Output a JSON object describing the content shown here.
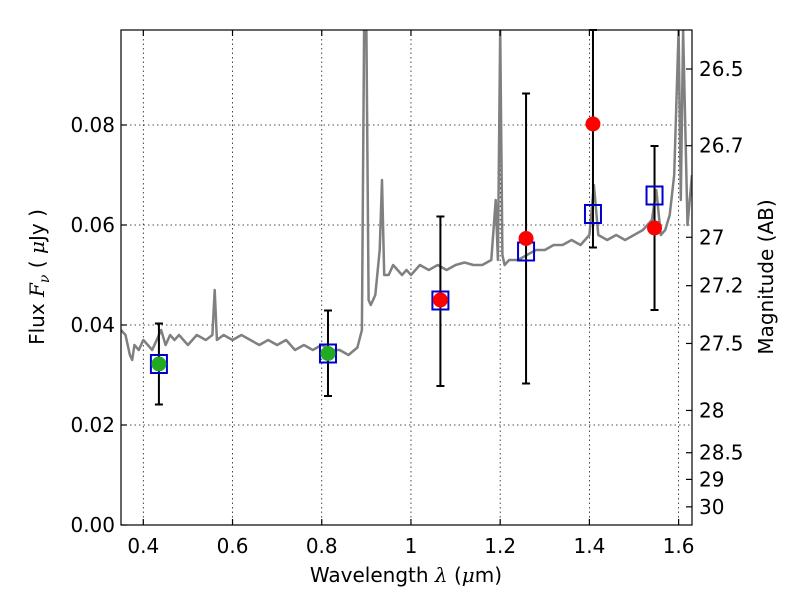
{
  "chart_data": {
    "type": "scatter",
    "xlabel": "Wavelength",
    "xlabel_symbol": "λ",
    "xlabel_unit_open": " (",
    "xlabel_unit_mu": "μ",
    "xlabel_unit_close": "m)",
    "ylabel": "Flux",
    "ylabel_symbol": "F",
    "ylabel_sub": "ν",
    "ylabel_unit_open": "( ",
    "ylabel_unit_mu": "μ",
    "ylabel_unit_close": "Jy )",
    "y2label": "Magnitude (AB)",
    "xlim": [
      0.35,
      1.63
    ],
    "ylim": [
      0.0,
      0.099
    ],
    "grid": true,
    "x_ticks": [
      {
        "value": 0.4,
        "label": "0.4"
      },
      {
        "value": 0.6,
        "label": "0.6"
      },
      {
        "value": 0.8,
        "label": "0.8"
      },
      {
        "value": 1.0,
        "label": "1"
      },
      {
        "value": 1.2,
        "label": "1.2"
      },
      {
        "value": 1.4,
        "label": "1.4"
      },
      {
        "value": 1.6,
        "label": "1.6"
      }
    ],
    "y_ticks": [
      {
        "value": 0.0,
        "label": "0.00"
      },
      {
        "value": 0.02,
        "label": "0.02"
      },
      {
        "value": 0.04,
        "label": "0.04"
      },
      {
        "value": 0.06,
        "label": "0.06"
      },
      {
        "value": 0.08,
        "label": "0.08"
      }
    ],
    "y2_ticks": [
      {
        "value": 26.5,
        "label": "26.5"
      },
      {
        "value": 26.7,
        "label": "26.7"
      },
      {
        "value": 27.0,
        "label": "27"
      },
      {
        "value": 27.2,
        "label": "27.2"
      },
      {
        "value": 27.5,
        "label": "27.5"
      },
      {
        "value": 28.0,
        "label": "28"
      },
      {
        "value": 28.5,
        "label": "28.5"
      },
      {
        "value": 29.0,
        "label": "29"
      },
      {
        "value": 30.0,
        "label": "30"
      }
    ],
    "observed": [
      {
        "x": 0.435,
        "y": 0.0322,
        "yerr_low": 0.0241,
        "yerr_high": 0.0403,
        "color": "#22aa22"
      },
      {
        "x": 0.814,
        "y": 0.0343,
        "yerr_low": 0.0258,
        "yerr_high": 0.0429,
        "color": "#22aa22"
      },
      {
        "x": 1.066,
        "y": 0.045,
        "yerr_low": 0.0278,
        "yerr_high": 0.0617,
        "color": "#ff0000"
      },
      {
        "x": 1.258,
        "y": 0.0573,
        "yerr_low": 0.0283,
        "yerr_high": 0.0863,
        "color": "#ff0000"
      },
      {
        "x": 1.408,
        "y": 0.0802,
        "yerr_low": 0.0555,
        "yerr_high": 0.099,
        "color": "#ff0000"
      },
      {
        "x": 1.546,
        "y": 0.0594,
        "yerr_low": 0.043,
        "yerr_high": 0.0758,
        "color": "#ff0000"
      }
    ],
    "model_photometry": [
      {
        "x": 0.435,
        "y": 0.0322
      },
      {
        "x": 0.814,
        "y": 0.0343
      },
      {
        "x": 1.066,
        "y": 0.0449
      },
      {
        "x": 1.258,
        "y": 0.0547
      },
      {
        "x": 1.408,
        "y": 0.0622
      },
      {
        "x": 1.546,
        "y": 0.0659
      }
    ],
    "spectrum": {
      "color": "#808080",
      "x": [
        0.35,
        0.36,
        0.37,
        0.375,
        0.38,
        0.39,
        0.4,
        0.41,
        0.42,
        0.43,
        0.44,
        0.45,
        0.46,
        0.47,
        0.48,
        0.5,
        0.52,
        0.54,
        0.555,
        0.56,
        0.565,
        0.58,
        0.6,
        0.62,
        0.64,
        0.66,
        0.68,
        0.7,
        0.72,
        0.74,
        0.76,
        0.78,
        0.8,
        0.82,
        0.84,
        0.86,
        0.88,
        0.89,
        0.895,
        0.9,
        0.905,
        0.91,
        0.92,
        0.93,
        0.935,
        0.94,
        0.95,
        0.96,
        0.97,
        0.98,
        0.99,
        1.0,
        1.02,
        1.04,
        1.06,
        1.08,
        1.1,
        1.12,
        1.14,
        1.16,
        1.18,
        1.19,
        1.195,
        1.2,
        1.205,
        1.21,
        1.22,
        1.24,
        1.26,
        1.28,
        1.3,
        1.32,
        1.34,
        1.36,
        1.38,
        1.4,
        1.41,
        1.42,
        1.44,
        1.46,
        1.48,
        1.5,
        1.52,
        1.54,
        1.55,
        1.56,
        1.57,
        1.58,
        1.59,
        1.6,
        1.605,
        1.61,
        1.62,
        1.63
      ],
      "y": [
        0.039,
        0.038,
        0.034,
        0.033,
        0.036,
        0.035,
        0.037,
        0.036,
        0.035,
        0.037,
        0.039,
        0.036,
        0.038,
        0.037,
        0.038,
        0.036,
        0.038,
        0.037,
        0.038,
        0.047,
        0.037,
        0.038,
        0.037,
        0.038,
        0.037,
        0.036,
        0.037,
        0.036,
        0.037,
        0.035,
        0.036,
        0.035,
        0.036,
        0.035,
        0.035,
        0.034,
        0.0355,
        0.039,
        0.099,
        0.099,
        0.045,
        0.044,
        0.046,
        0.055,
        0.069,
        0.05,
        0.05,
        0.052,
        0.051,
        0.05,
        0.051,
        0.05,
        0.052,
        0.051,
        0.052,
        0.051,
        0.052,
        0.0525,
        0.052,
        0.052,
        0.053,
        0.065,
        0.053,
        0.099,
        0.054,
        0.052,
        0.053,
        0.053,
        0.054,
        0.055,
        0.055,
        0.056,
        0.056,
        0.057,
        0.056,
        0.058,
        0.068,
        0.058,
        0.057,
        0.058,
        0.057,
        0.058,
        0.059,
        0.061,
        0.067,
        0.058,
        0.059,
        0.062,
        0.07,
        0.099,
        0.065,
        0.099,
        0.06,
        0.07
      ]
    }
  }
}
